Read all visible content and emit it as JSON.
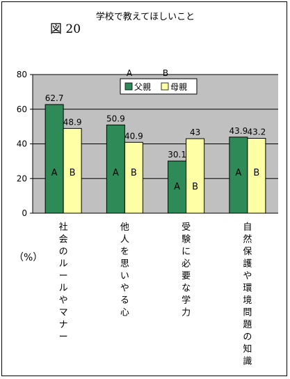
{
  "figure_label": "図 20",
  "chart_data": {
    "type": "bar",
    "title": "学校で教えてほしいこと",
    "categories": [
      "社会のルールやマナー",
      "他人を思いやる心",
      "受験に必要な学力",
      "自然保護や環境問題の知識"
    ],
    "series": [
      {
        "name": "父親",
        "marker": "A",
        "values": [
          62.7,
          50.9,
          30.1,
          43.9
        ],
        "color": "#2e8b57"
      },
      {
        "name": "母親",
        "marker": "B",
        "values": [
          48.9,
          40.9,
          43,
          43.2
        ],
        "color": "#ffffa6"
      }
    ],
    "value_labels": [
      [
        "62.7",
        "50.9",
        "30.1",
        "43.9"
      ],
      [
        "48.9",
        "40.9",
        "43",
        "43.2"
      ]
    ],
    "yticks": [
      "0",
      "20",
      "40",
      "60",
      "80"
    ],
    "ylim": [
      0,
      80
    ],
    "ylabel": "（%）",
    "legend_extra_labels": [
      "A",
      "B"
    ],
    "legend_position": "top-center",
    "plot_background": "#c0c0c0",
    "grid": true
  }
}
